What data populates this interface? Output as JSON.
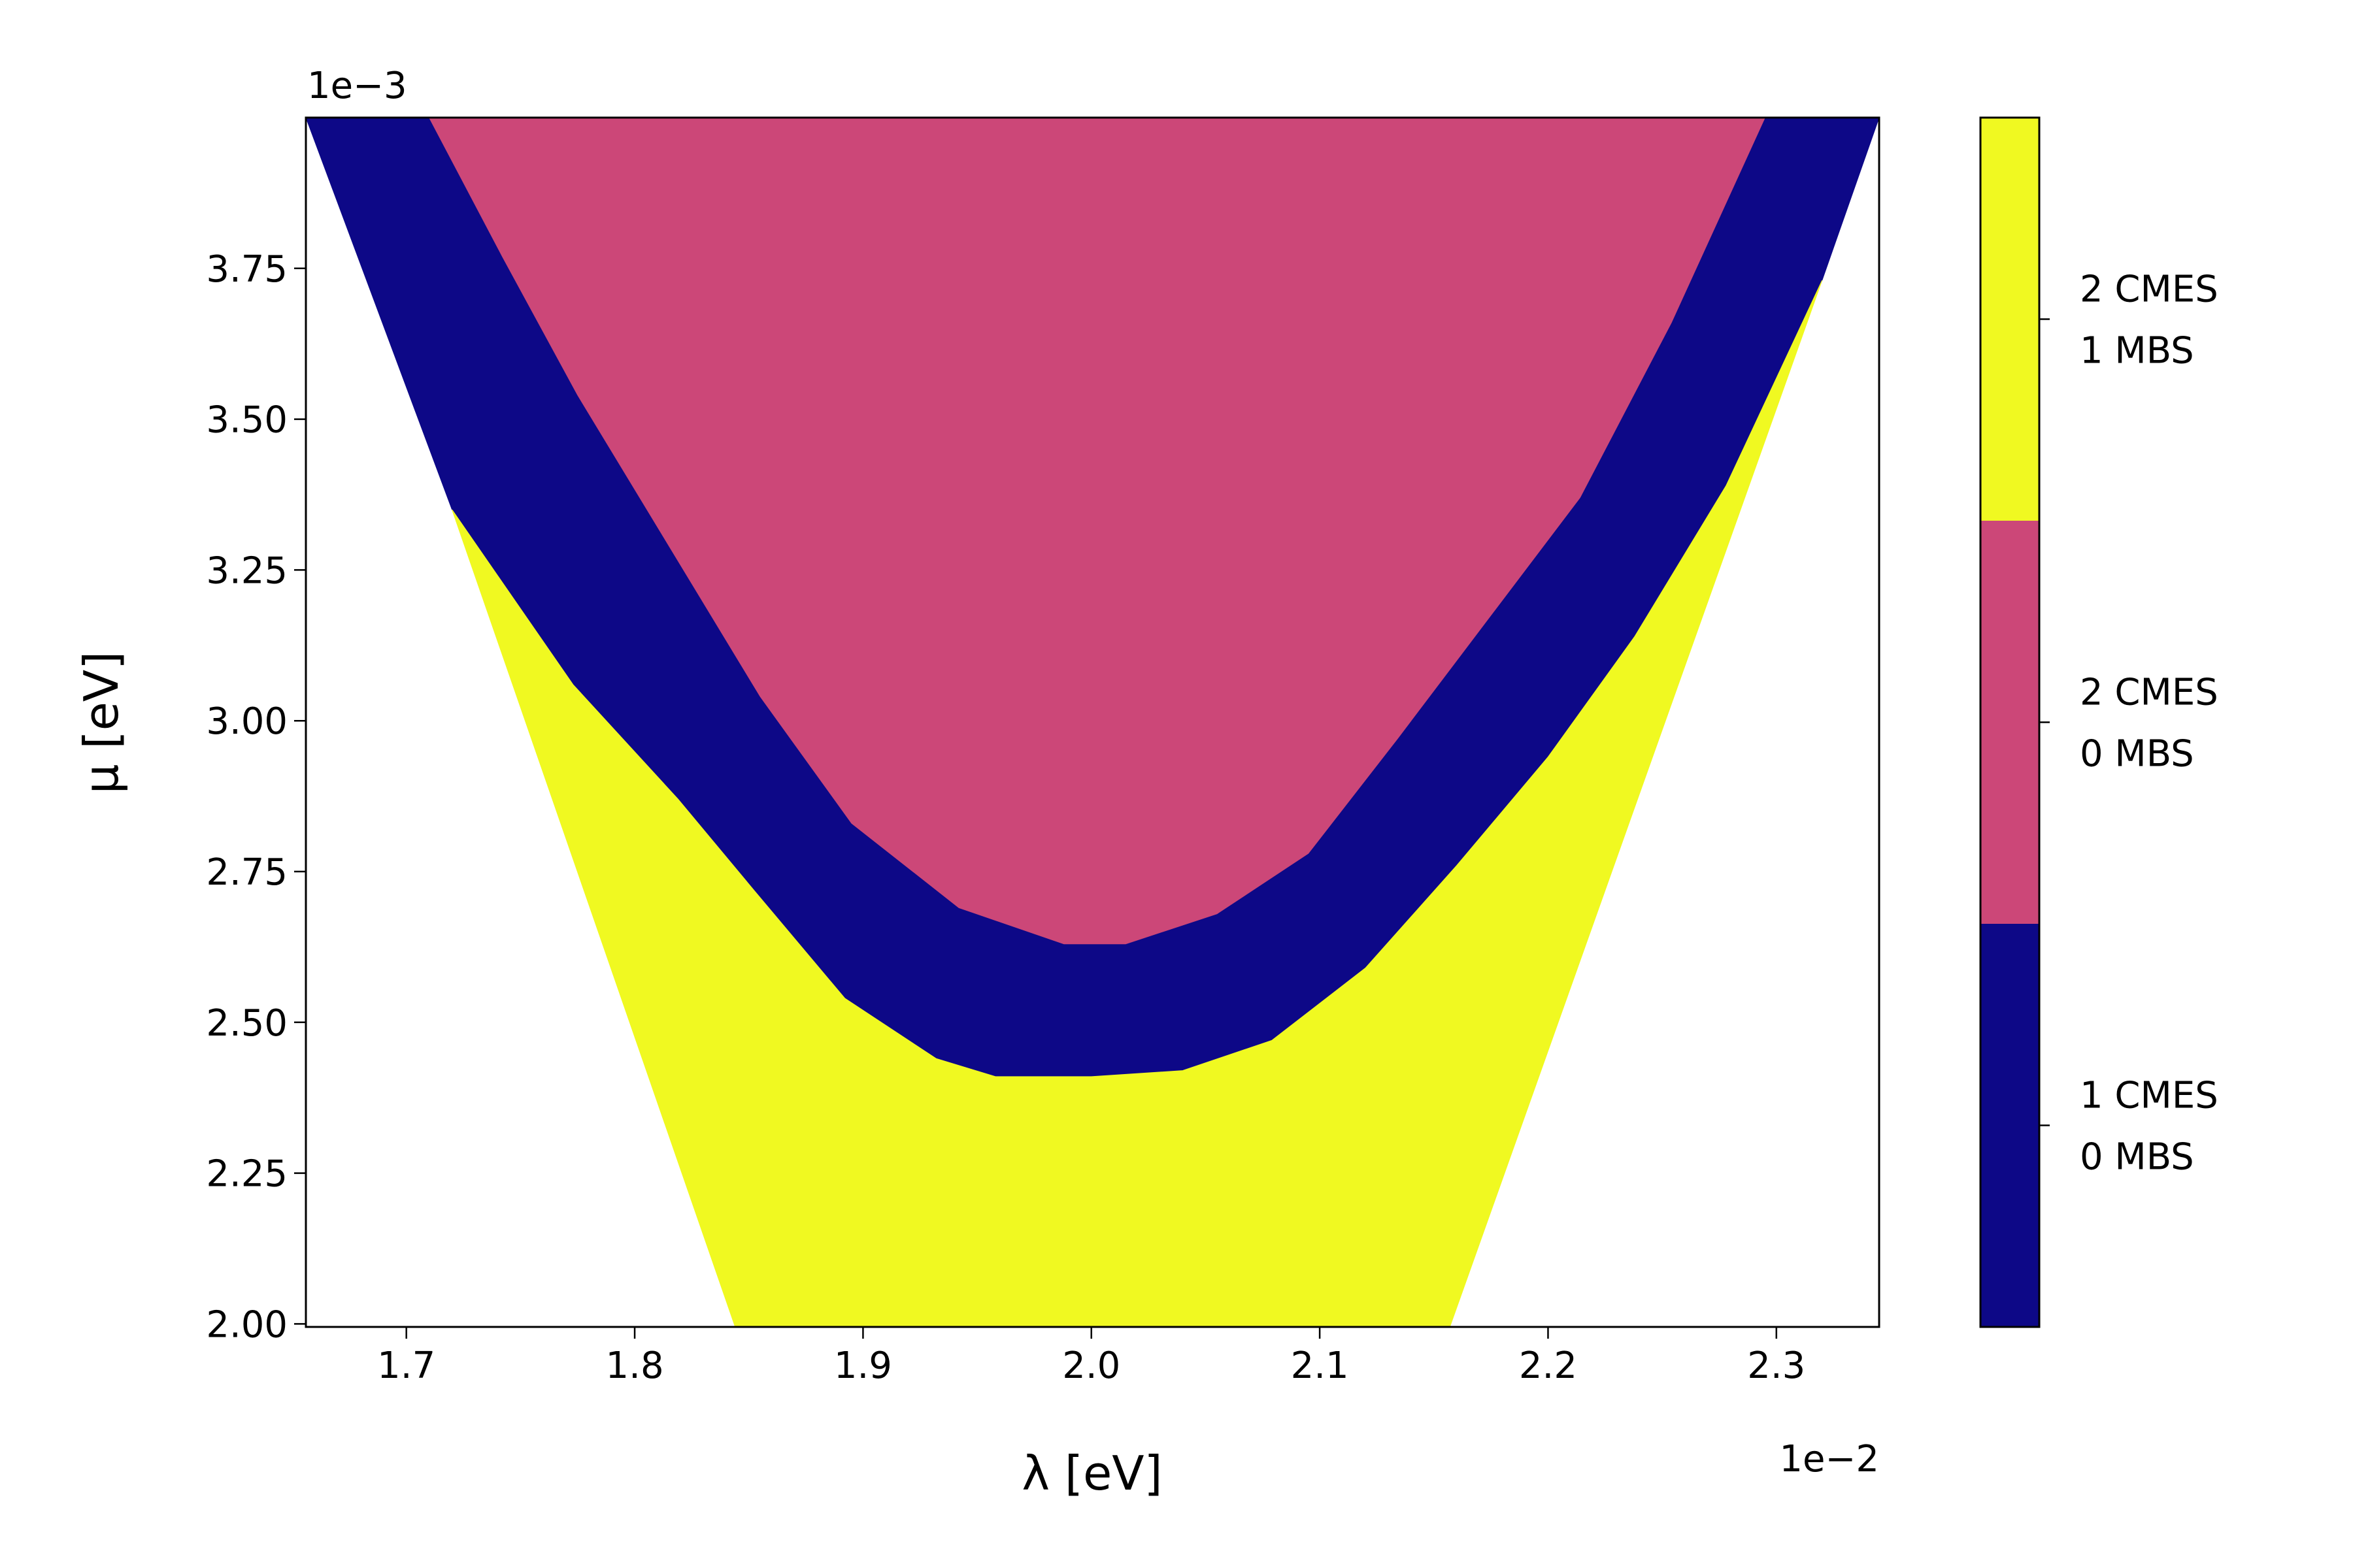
{
  "chart_data": {
    "type": "region",
    "xlabel": "λ [eV]",
    "ylabel": "μ [eV]",
    "x_offset_label": "1e−2",
    "y_offset_label": "1e−3",
    "xlim": [
      1.656,
      2.345
    ],
    "ylim": [
      1.995,
      4.0
    ],
    "xticks": [
      1.7,
      1.8,
      1.9,
      {
        "value": 2.0,
        "label": "2.0"
      },
      2.1,
      2.2,
      2.3
    ],
    "yticks": [
      {
        "value": 2.0,
        "label": "2.00"
      },
      2.25,
      {
        "value": 2.5,
        "label": "2.50"
      },
      2.75,
      {
        "value": 3.0,
        "label": "3.00"
      },
      3.25,
      {
        "value": 3.5,
        "label": "3.50"
      },
      3.75
    ],
    "series": [
      {
        "name": "1 CMES\n0 MBS",
        "color": "#0d0887",
        "x": [
          1.656,
          1.72,
          1.773,
          1.819,
          1.852,
          1.892,
          1.932,
          1.958,
          2.0,
          2.04,
          2.079,
          2.12,
          2.16,
          2.2,
          2.238,
          2.278,
          2.32,
          2.345
        ],
        "y": [
          4.0,
          3.35,
          3.06,
          2.87,
          2.72,
          2.54,
          2.44,
          2.41,
          2.41,
          2.42,
          2.47,
          2.59,
          2.76,
          2.94,
          3.14,
          3.39,
          3.73,
          4.0
        ]
      },
      {
        "name": "2 CMES\n0 MBS",
        "color": "#cc4778",
        "x": [
          1.71,
          1.742,
          1.775,
          1.815,
          1.855,
          1.895,
          1.942,
          1.988,
          2.015,
          2.055,
          2.095,
          2.134,
          2.174,
          2.214,
          2.254,
          2.295
        ],
        "y": [
          4.0,
          3.77,
          3.54,
          3.29,
          3.04,
          2.83,
          2.69,
          2.63,
          2.63,
          2.68,
          2.78,
          2.97,
          3.17,
          3.37,
          3.66,
          4.0
        ]
      },
      {
        "name": "2 CMES\n1 MBS",
        "color": "#f0f921",
        "x": [
          1.72,
          1.844,
          2.157,
          2.32,
          2.278,
          2.238,
          2.2,
          2.16,
          2.12,
          2.079,
          2.04,
          2.0,
          1.958,
          1.932,
          1.892,
          1.852,
          1.819,
          1.773
        ],
        "y": [
          3.35,
          1.995,
          1.995,
          3.73,
          3.39,
          3.14,
          2.94,
          2.76,
          2.59,
          2.47,
          2.42,
          2.41,
          2.41,
          2.44,
          2.54,
          2.72,
          2.87,
          3.06
        ]
      }
    ]
  }
}
